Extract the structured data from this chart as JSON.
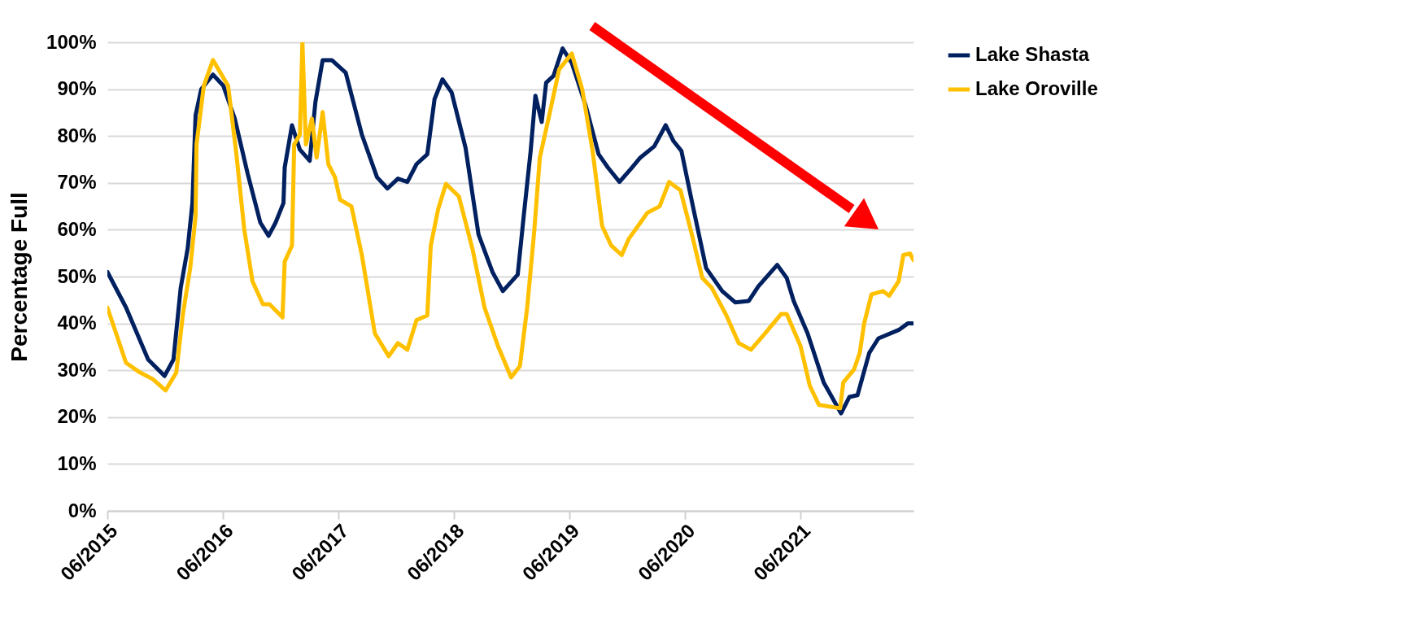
{
  "chart_data": {
    "type": "line",
    "ylabel": "Percentage Full",
    "xlim": [
      "2015-06-01",
      "2022-05-25"
    ],
    "xticks": [
      {
        "value": "2015-06-01",
        "label": "06/2015"
      },
      {
        "value": "2016-06-01",
        "label": "06/2016"
      },
      {
        "value": "2017-06-01",
        "label": "06/2017"
      },
      {
        "value": "2018-06-01",
        "label": "06/2018"
      },
      {
        "value": "2019-06-01",
        "label": "06/2019"
      },
      {
        "value": "2020-06-01",
        "label": "06/2020"
      },
      {
        "value": "2021-06-01",
        "label": "06/2021"
      }
    ],
    "ylim": [
      0,
      100
    ],
    "yticks": [
      {
        "value": 0,
        "label": "0%"
      },
      {
        "value": 10,
        "label": "10%"
      },
      {
        "value": 20,
        "label": "20%"
      },
      {
        "value": 30,
        "label": "30%"
      },
      {
        "value": 40,
        "label": "40%"
      },
      {
        "value": 50,
        "label": "50%"
      },
      {
        "value": 60,
        "label": "60%"
      },
      {
        "value": 70,
        "label": "70%"
      },
      {
        "value": 80,
        "label": "80%"
      },
      {
        "value": 90,
        "label": "90%"
      },
      {
        "value": 100,
        "label": "100%"
      }
    ],
    "grid": "y",
    "legend": "right",
    "line_style": "solid",
    "series": [
      {
        "name": "Lake Shasta",
        "color": "#002060",
        "x": [
          "2015-06-01",
          "2015-07-30",
          "2015-10-08",
          "2015-11-29",
          "2015-12-27",
          "2016-01-19",
          "2016-02-10",
          "2016-02-25",
          "2016-03-06",
          "2016-03-24",
          "2016-04-30",
          "2016-06-02",
          "2016-07-08",
          "2016-08-18",
          "2016-09-27",
          "2016-10-23",
          "2016-11-14",
          "2016-12-09",
          "2016-12-13",
          "2017-01-05",
          "2017-01-30",
          "2017-03-02",
          "2017-03-20",
          "2017-04-12",
          "2017-05-11",
          "2017-06-24",
          "2017-08-14",
          "2017-10-01",
          "2017-11-03",
          "2017-12-06",
          "2018-01-05",
          "2018-02-03",
          "2018-03-09",
          "2018-04-01",
          "2018-04-26",
          "2018-05-25",
          "2018-07-08",
          "2018-08-18",
          "2018-10-01",
          "2018-11-03",
          "2018-12-20",
          "2019-01-08",
          "2019-01-30",
          "2019-02-14",
          "2019-03-06",
          "2019-03-20",
          "2019-04-12",
          "2019-05-11",
          "2019-06-09",
          "2019-07-23",
          "2019-09-02",
          "2019-10-01",
          "2019-11-07",
          "2019-12-13",
          "2020-01-12",
          "2020-02-25",
          "2020-04-01",
          "2020-04-26",
          "2020-05-21",
          "2020-06-24",
          "2020-08-07",
          "2020-09-27",
          "2020-11-07",
          "2020-12-20",
          "2021-01-19",
          "2021-03-20",
          "2021-04-19",
          "2021-05-11",
          "2021-06-24",
          "2021-08-14",
          "2021-10-08",
          "2021-11-03",
          "2021-11-29",
          "2022-01-05",
          "2022-02-03",
          "2022-04-08",
          "2022-05-07",
          "2022-05-25"
        ],
        "values": [
          51,
          43.4,
          32.3,
          28.8,
          32.3,
          47.6,
          56,
          65.7,
          84.4,
          90,
          93.1,
          90.7,
          83.7,
          71.9,
          61.5,
          58.7,
          61.5,
          65.7,
          73.3,
          82.3,
          77.1,
          74.7,
          87.2,
          96.2,
          96.2,
          93.5,
          80.3,
          71.2,
          68.8,
          70.9,
          70.2,
          74,
          76.1,
          87.9,
          92.1,
          89.3,
          77.5,
          59,
          51,
          46.9,
          50.4,
          62.9,
          76.8,
          88.6,
          83,
          91.4,
          92.8,
          98.7,
          95.6,
          86.5,
          76.1,
          73.3,
          70.2,
          73,
          75.4,
          77.8,
          82.3,
          78.9,
          76.8,
          65.7,
          51.8,
          46.9,
          44.5,
          44.8,
          47.9,
          52.5,
          49.7,
          44.8,
          37.9,
          27.4,
          20.8,
          24.3,
          24.7,
          33.7,
          36.8,
          38.6,
          40,
          40
        ]
      },
      {
        "name": "Lake Oroville",
        "color": "#ffc000",
        "x": [
          "2015-06-01",
          "2015-07-30",
          "2015-09-13",
          "2015-10-23",
          "2015-12-02",
          "2016-01-05",
          "2016-01-26",
          "2016-02-18",
          "2016-03-06",
          "2016-03-09",
          "2016-04-01",
          "2016-04-30",
          "2016-06-17",
          "2016-07-12",
          "2016-08-07",
          "2016-09-02",
          "2016-10-05",
          "2016-10-26",
          "2016-12-06",
          "2016-12-13",
          "2017-01-05",
          "2017-01-12",
          "2017-01-30",
          "2017-02-07",
          "2017-02-18",
          "2017-03-09",
          "2017-03-24",
          "2017-04-12",
          "2017-04-30",
          "2017-05-21",
          "2017-06-06",
          "2017-07-12",
          "2017-08-14",
          "2017-09-24",
          "2017-11-07",
          "2017-12-06",
          "2018-01-05",
          "2018-02-03",
          "2018-03-09",
          "2018-03-20",
          "2018-04-12",
          "2018-05-07",
          "2018-06-17",
          "2018-07-30",
          "2018-09-06",
          "2018-10-19",
          "2018-11-29",
          "2018-12-27",
          "2019-01-19",
          "2019-02-10",
          "2019-02-28",
          "2019-04-01",
          "2019-04-30",
          "2019-06-09",
          "2019-07-12",
          "2019-08-14",
          "2019-09-13",
          "2019-10-12",
          "2019-11-14",
          "2019-12-06",
          "2020-01-12",
          "2020-02-03",
          "2020-03-13",
          "2020-04-12",
          "2020-05-18",
          "2020-06-24",
          "2020-07-26",
          "2020-08-25",
          "2020-10-08",
          "2020-11-18",
          "2020-12-27",
          "2021-02-10",
          "2021-04-01",
          "2021-04-19",
          "2021-06-02",
          "2021-07-01",
          "2021-07-30",
          "2021-10-05",
          "2021-10-15",
          "2021-11-18",
          "2021-12-06",
          "2021-12-20",
          "2022-01-12",
          "2022-02-18",
          "2022-03-09",
          "2022-04-08",
          "2022-04-23",
          "2022-05-14",
          "2022-05-25"
        ],
        "values": [
          43.4,
          31.6,
          29.5,
          28.1,
          25.7,
          29.5,
          42,
          51.8,
          62.9,
          78.2,
          90.7,
          96.2,
          90.7,
          76.8,
          60.1,
          49,
          44.1,
          44.1,
          41.3,
          53.2,
          56.6,
          78.2,
          80.3,
          100,
          78.2,
          83.7,
          75.4,
          85.1,
          74,
          71.2,
          66.4,
          65,
          54.6,
          37.9,
          33,
          35.8,
          34.4,
          40.7,
          41.7,
          56.6,
          64.3,
          69.8,
          67.1,
          55.9,
          43.4,
          35.1,
          28.5,
          30.9,
          43.4,
          59.4,
          75.4,
          85.1,
          94.2,
          97.6,
          90,
          76.8,
          60.8,
          56.6,
          54.6,
          58,
          61.5,
          63.6,
          65,
          70.2,
          68.4,
          58.7,
          49.7,
          47.6,
          42,
          35.8,
          34.4,
          37.9,
          42,
          42,
          35.1,
          26.7,
          22.6,
          21.9,
          27.4,
          30.2,
          33.7,
          40,
          46.2,
          46.9,
          45.9,
          49,
          54.6,
          54.9,
          53.5
        ]
      }
    ]
  }
}
